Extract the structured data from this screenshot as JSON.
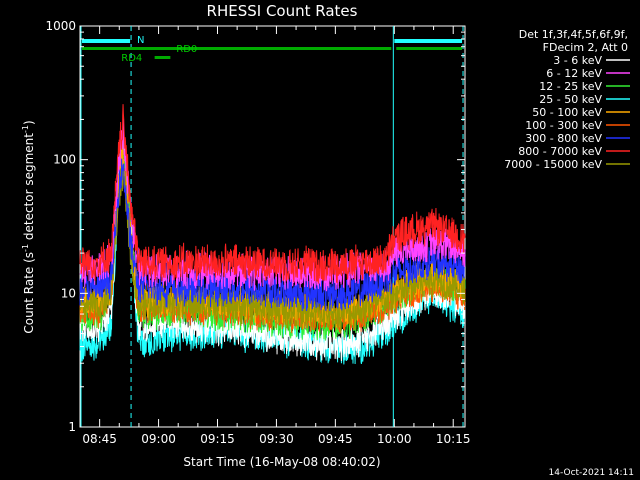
{
  "chart_data": {
    "type": "line",
    "title": "RHESSI Count Rates",
    "xlabel": "Start Time (16-May-08 08:40:02)",
    "ylabel": "Count Rate (s-1 detector segment-1)",
    "ylabel_parts": [
      "Count Rate (s",
      "-1",
      " detector segment",
      "-1",
      ")"
    ],
    "y_scale": "log",
    "ylim": [
      1,
      1000
    ],
    "xlim_minutes": [
      0,
      98
    ],
    "x_tick_labels": [
      "08:45",
      "09:00",
      "09:15",
      "09:30",
      "09:45",
      "10:00",
      "10:15"
    ],
    "x_tick_minutes": [
      5,
      20,
      35,
      50,
      65,
      80,
      95
    ],
    "y_tick_labels": [
      "1",
      "10",
      "100",
      "1000"
    ],
    "y_tick_values": [
      1,
      10,
      100,
      1000
    ],
    "legend_header": [
      "Det 1f,3f,4f,5f,6f,9f,",
      "FDecim 2, Att 0"
    ],
    "legend_placement": "right",
    "x_units": "minutes after 08:40",
    "series": [
      {
        "name": "3 - 6 keV",
        "color": "#ffffff",
        "x": [
          0,
          5,
          8,
          10,
          11,
          13,
          15,
          18,
          25,
          40,
          55,
          65,
          72,
          80,
          85,
          90,
          95,
          98
        ],
        "values": [
          5.5,
          5.5,
          8,
          70,
          150,
          30,
          5,
          6,
          6,
          5.5,
          4.5,
          4.2,
          4.5,
          7,
          9,
          11,
          9,
          8
        ]
      },
      {
        "name": "6 - 12 keV",
        "color": "#ff44ff",
        "x": [
          0,
          5,
          8,
          10,
          11,
          13,
          15,
          18,
          25,
          40,
          55,
          65,
          72,
          78,
          80,
          85,
          90,
          95,
          98
        ],
        "values": [
          15,
          15,
          18,
          110,
          170,
          40,
          15,
          15,
          15,
          14.5,
          14,
          14,
          15,
          16,
          20,
          22,
          24,
          22,
          21
        ]
      },
      {
        "name": "12 - 25 keV",
        "color": "#33ee33",
        "x": [
          0,
          5,
          8,
          10,
          11,
          13,
          15,
          18,
          25,
          40,
          55,
          65,
          72,
          80,
          85,
          90,
          95,
          98
        ],
        "values": [
          7,
          7,
          10,
          90,
          140,
          28,
          7,
          7,
          7.5,
          7,
          6.2,
          6,
          6.5,
          9,
          11,
          13,
          11,
          10
        ]
      },
      {
        "name": "25 - 50 keV",
        "color": "#22ffff",
        "x": [
          0,
          5,
          8,
          10,
          11,
          13,
          15,
          18,
          25,
          40,
          55,
          65,
          72,
          80,
          85,
          90,
          95,
          98
        ],
        "values": [
          4.2,
          4.2,
          6,
          80,
          130,
          24,
          4,
          4.5,
          5,
          5,
          4.5,
          3.8,
          4,
          6,
          8,
          10,
          8,
          7
        ]
      },
      {
        "name": "50 - 100 keV",
        "color": "#ffaa00",
        "x": [
          0,
          5,
          8,
          10,
          11,
          13,
          15,
          18,
          25,
          40,
          55,
          65,
          72,
          80,
          85,
          90,
          95,
          98
        ],
        "values": [
          9,
          9,
          11,
          80,
          110,
          26,
          9,
          9,
          9,
          8.5,
          7.5,
          7.3,
          7.8,
          10,
          12,
          13.5,
          12,
          11
        ]
      },
      {
        "name": "100 - 300 keV",
        "color": "#ff5500",
        "x": [
          0,
          5,
          8,
          10,
          11,
          13,
          15,
          18,
          25,
          40,
          55,
          65,
          72,
          80,
          85,
          90,
          95,
          98
        ],
        "values": [
          7.5,
          7.5,
          10,
          70,
          100,
          24,
          7.5,
          8,
          8,
          7.5,
          6.8,
          6.5,
          7,
          9,
          11,
          12,
          10.5,
          9.5
        ]
      },
      {
        "name": "300 - 800 keV",
        "color": "#2233ff",
        "x": [
          0,
          5,
          8,
          10,
          11,
          13,
          15,
          18,
          25,
          40,
          55,
          65,
          72,
          80,
          85,
          90,
          95,
          98
        ],
        "values": [
          11,
          11,
          13,
          70,
          90,
          22,
          11,
          11,
          11,
          11,
          10,
          10,
          10.5,
          14,
          16,
          17,
          16,
          15
        ]
      },
      {
        "name": "800 - 7000 keV",
        "color": "#ff2222",
        "x": [
          0,
          5,
          8,
          10,
          11,
          13,
          15,
          18,
          25,
          40,
          55,
          65,
          72,
          78,
          80,
          85,
          90,
          95,
          98
        ],
        "values": [
          17,
          17,
          20,
          130,
          190,
          45,
          17,
          17,
          17,
          17,
          16.5,
          16.5,
          17,
          18,
          26,
          30,
          32,
          28,
          26
        ]
      },
      {
        "name": "7000 - 15000 keV",
        "color": "#999900",
        "x": [
          0,
          5,
          8,
          10,
          11,
          13,
          15,
          18,
          25,
          40,
          55,
          65,
          72,
          80,
          85,
          90,
          95,
          98
        ],
        "values": [
          8,
          8,
          10,
          60,
          75,
          20,
          8,
          8.5,
          8.5,
          8,
          7.3,
          7,
          7.5,
          9.5,
          11.5,
          13,
          11.5,
          10.5
        ]
      }
    ],
    "annotations": {
      "n_label": "N",
      "rd0_label": "RD0",
      "rd4_label": "RD4",
      "night_minutes": [
        [
          0,
          13
        ],
        [
          79.5,
          97.5
        ]
      ],
      "rd0_minutes": [
        [
          0,
          79.5
        ],
        [
          80,
          97.5
        ]
      ],
      "rd4_minutes": [
        [
          19,
          23
        ]
      ],
      "vlines_solid_minutes": [
        0,
        79.5
      ],
      "vlines_dashed_minutes": [
        13,
        97.5
      ]
    }
  },
  "footer": {
    "date_stamp": "14-Oct-2021 14:11"
  }
}
